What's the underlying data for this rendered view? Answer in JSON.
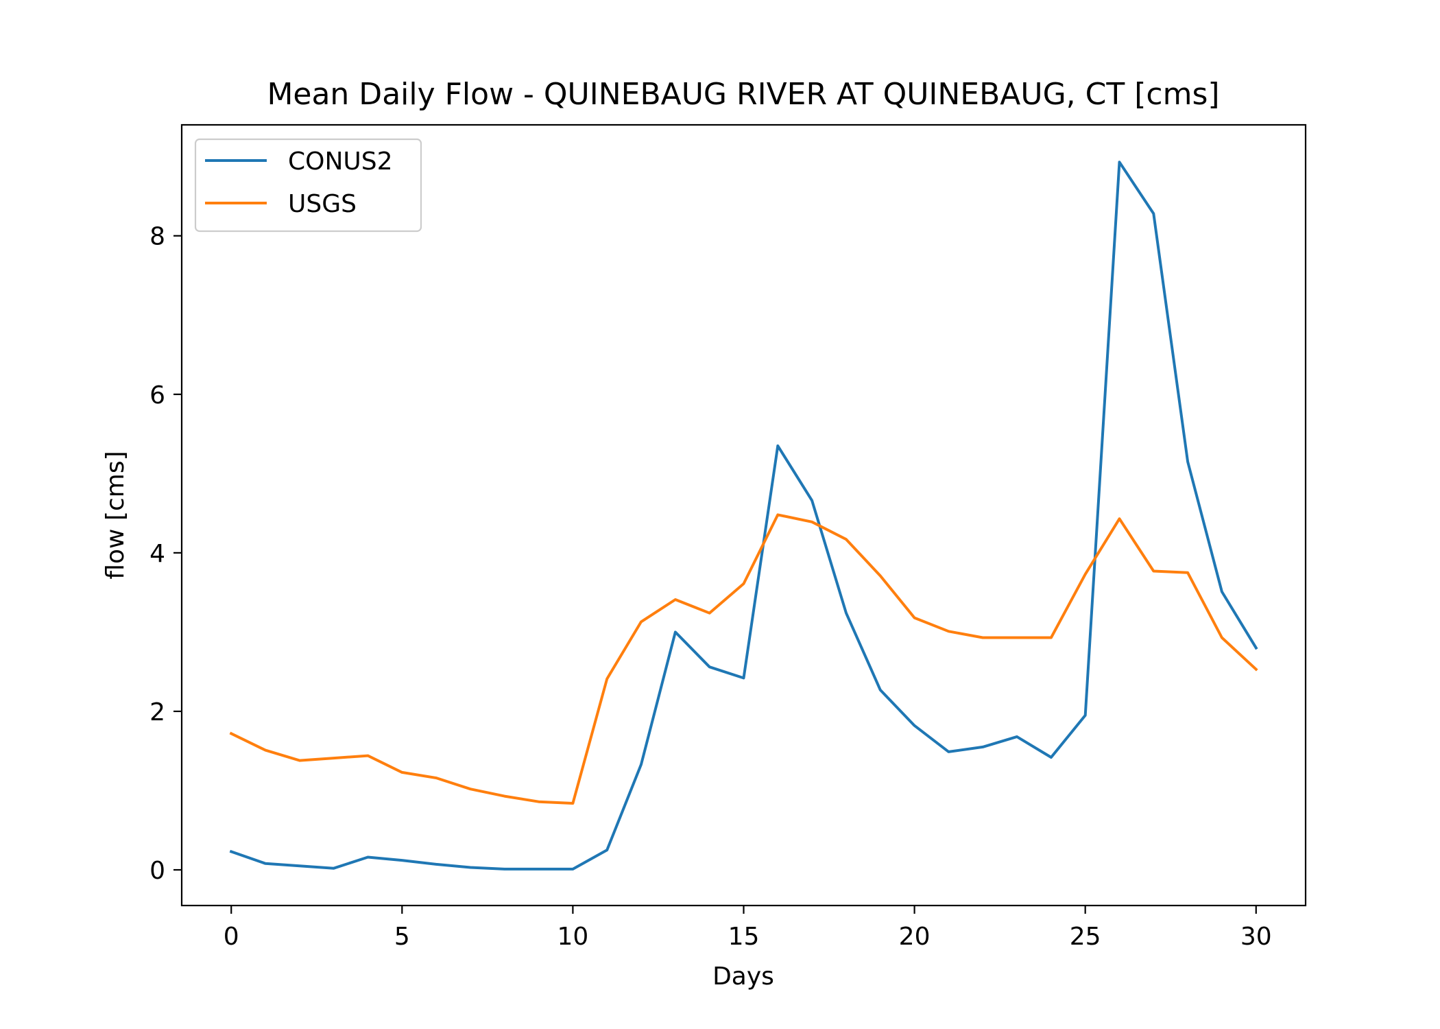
{
  "chart_data": {
    "type": "line",
    "title": "Mean Daily Flow - QUINEBAUG RIVER AT QUINEBAUG, CT [cms]",
    "xlabel": "Days",
    "ylabel": "flow [cms]",
    "xlim": [
      -1.45,
      31.45
    ],
    "ylim": [
      -0.45,
      9.4
    ],
    "xticks": [
      0,
      5,
      10,
      15,
      20,
      25,
      30
    ],
    "yticks": [
      0,
      2,
      4,
      6,
      8
    ],
    "xtick_labels": [
      "0",
      "5",
      "10",
      "15",
      "20",
      "25",
      "30"
    ],
    "ytick_labels": [
      "0",
      "2",
      "4",
      "6",
      "8"
    ],
    "grid": false,
    "legend_position": "top-left",
    "x": [
      0,
      1,
      2,
      3,
      4,
      5,
      6,
      7,
      8,
      9,
      10,
      11,
      12,
      13,
      14,
      15,
      16,
      17,
      18,
      19,
      20,
      21,
      22,
      23,
      24,
      25,
      26,
      27,
      28,
      29,
      30
    ],
    "series": [
      {
        "name": "CONUS2",
        "color": "#1f77b4",
        "values": [
          0.23,
          0.08,
          0.05,
          0.02,
          0.16,
          0.12,
          0.07,
          0.03,
          0.01,
          0.01,
          0.01,
          0.25,
          1.33,
          3.0,
          2.56,
          2.42,
          5.35,
          4.66,
          3.24,
          2.27,
          1.82,
          1.49,
          1.55,
          1.68,
          1.42,
          1.95,
          8.93,
          8.28,
          5.15,
          3.51,
          2.8
        ]
      },
      {
        "name": "USGS",
        "color": "#ff7f0e",
        "values": [
          1.72,
          1.51,
          1.38,
          1.41,
          1.44,
          1.23,
          1.16,
          1.02,
          0.93,
          0.86,
          0.84,
          2.41,
          3.13,
          3.41,
          3.24,
          3.61,
          4.48,
          4.39,
          4.17,
          3.71,
          3.18,
          3.01,
          2.93,
          2.93,
          2.93,
          3.73,
          4.43,
          3.77,
          3.75,
          2.93,
          2.53
        ]
      }
    ]
  }
}
